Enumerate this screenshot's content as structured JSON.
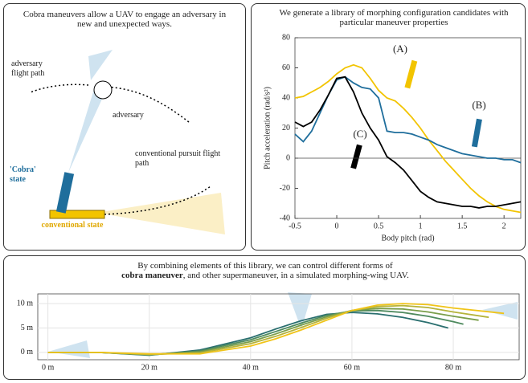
{
  "diagram": {
    "title": "Cobra maneuvers allow a UAV to engage an adversary in new and unexpected ways.",
    "adversary_path_label": "adversary flight path",
    "adversary_label": "adversary",
    "cobra_label": "'Cobra' state",
    "pursuit_label": "conventional pursuit flight path",
    "conventional_label": "conventional state"
  },
  "chart_data": [
    {
      "type": "line",
      "title": "We generate a library of morphing configuration candidates with particular maneuver properties",
      "x_label": "Body pitch (rad)",
      "y_label": "Pitch acceleration (rad/s²)",
      "x": [
        -0.5,
        -0.4,
        -0.3,
        -0.2,
        -0.1,
        0,
        0.1,
        0.2,
        0.3,
        0.4,
        0.5,
        0.6,
        0.7,
        0.8,
        0.9,
        1.0,
        1.1,
        1.2,
        1.3,
        1.4,
        1.5,
        1.6,
        1.7,
        1.8,
        1.9,
        2.0,
        2.1,
        2.2
      ],
      "xlim": [
        -0.5,
        2.2
      ],
      "xticks": [
        -0.5,
        0,
        0.5,
        1,
        1.5,
        2
      ],
      "ylim": [
        -40,
        80
      ],
      "yticks": [
        -40,
        -20,
        0,
        20,
        40,
        60,
        80
      ],
      "grid": false,
      "series": [
        {
          "name": "(A)",
          "color": "#f2c400",
          "values": [
            40,
            41,
            44,
            47,
            51,
            56,
            60,
            62,
            60,
            53,
            45,
            40,
            38,
            33,
            27,
            20,
            12,
            5,
            -2,
            -8,
            -14,
            -20,
            -25,
            -29,
            -32,
            -34,
            -35,
            -36
          ]
        },
        {
          "name": "(B)",
          "color": "#1f6e9c",
          "values": [
            16,
            11,
            18,
            30,
            42,
            52,
            54,
            50,
            47,
            46,
            40,
            18,
            17,
            17,
            16,
            14,
            12,
            9,
            7,
            5,
            3,
            2,
            1,
            0,
            0,
            -1,
            -1,
            -3
          ]
        },
        {
          "name": "(C)",
          "color": "#000000",
          "values": [
            24,
            21,
            24,
            32,
            42,
            53,
            54,
            44,
            30,
            20,
            12,
            1,
            -3,
            -8,
            -15,
            -22,
            -26,
            -29,
            -30,
            -31,
            -32,
            -32,
            -33,
            -32,
            -32,
            -31,
            -30,
            -29
          ]
        }
      ]
    },
    {
      "type": "line",
      "title_lead": "By combining elements of this library, we can control different forms of",
      "title_emphasis": "cobra maneuver",
      "title_tail": ", and other supermaneuver, in a simulated morphing-wing UAV.",
      "xlim": [
        -2,
        93
      ],
      "xticks": [
        {
          "value": 0,
          "label": "0 m"
        },
        {
          "value": 20,
          "label": "20 m"
        },
        {
          "value": 40,
          "label": "40 m"
        },
        {
          "value": 60,
          "label": "60 m"
        },
        {
          "value": 80,
          "label": "80 m"
        }
      ],
      "ylim": [
        -1.5,
        12
      ],
      "yticks": [
        {
          "value": 0,
          "label": "0 m"
        },
        {
          "value": 5,
          "label": "5 m"
        },
        {
          "value": 10,
          "label": "10 m"
        }
      ],
      "grid": true,
      "series": [
        {
          "color": "#2a6f6f",
          "x": [
            0,
            10,
            20,
            30,
            40,
            45,
            50,
            55,
            60,
            65,
            70,
            75,
            79
          ],
          "values": [
            0,
            0,
            -0.6,
            0.5,
            3,
            4.8,
            6.5,
            7.8,
            8.2,
            7.9,
            7.2,
            6.1,
            5
          ]
        },
        {
          "color": "#4e8a5e",
          "x": [
            0,
            10,
            20,
            30,
            40,
            45,
            50,
            55,
            60,
            65,
            70,
            75,
            80,
            82
          ],
          "values": [
            0,
            0,
            -0.5,
            0.3,
            2.6,
            4.3,
            6,
            7.6,
            8.5,
            8.6,
            8.2,
            7.4,
            6.3,
            5.8
          ]
        },
        {
          "color": "#7a9e4a",
          "x": [
            0,
            10,
            20,
            30,
            40,
            45,
            50,
            55,
            60,
            65,
            70,
            75,
            80,
            85
          ],
          "values": [
            0,
            0,
            -0.5,
            0.1,
            2.2,
            3.8,
            5.6,
            7.3,
            8.6,
            9,
            8.9,
            8.3,
            7.4,
            6.6
          ]
        },
        {
          "color": "#b5b33a",
          "x": [
            0,
            10,
            20,
            30,
            40,
            45,
            50,
            55,
            60,
            65,
            70,
            75,
            80,
            87
          ],
          "values": [
            0,
            0,
            -0.4,
            -0.1,
            1.8,
            3.3,
            5.1,
            7,
            8.6,
            9.4,
            9.6,
            9.2,
            8.3,
            7.2
          ]
        },
        {
          "color": "#f0c419",
          "x": [
            0,
            10,
            20,
            30,
            40,
            45,
            50,
            55,
            60,
            65,
            70,
            75,
            80,
            90
          ],
          "values": [
            0,
            0,
            -0.3,
            -0.3,
            1.3,
            2.8,
            4.6,
            6.6,
            8.6,
            9.7,
            10,
            9.8,
            9.1,
            8
          ]
        }
      ]
    }
  ]
}
